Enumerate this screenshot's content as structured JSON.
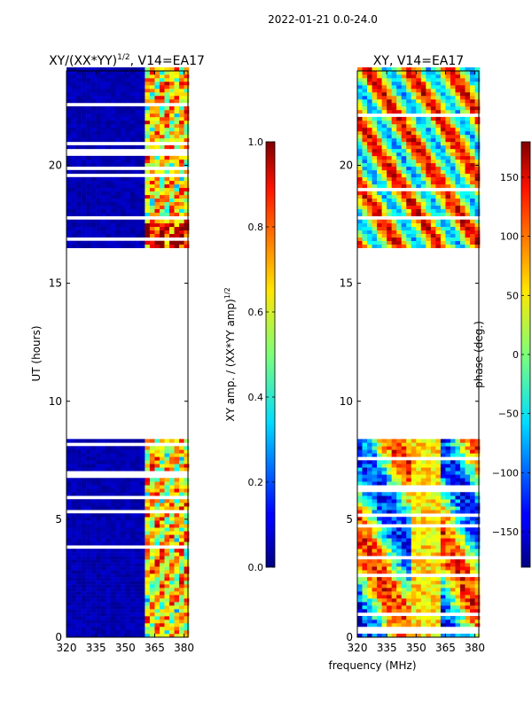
{
  "page": {
    "suptitle": "2022-01-21 0.0-24.0",
    "shared_xlabel": "frequency (MHz)"
  },
  "chart_data": [
    {
      "type": "heatmap",
      "title_main": "XY/(XX*YY)",
      "title_sup": "1/2",
      "title_rest": ", V14=EA17",
      "xlabel": "frequency (MHz)",
      "ylabel": "UT (hours)",
      "xlim": [
        320,
        382
      ],
      "ylim": [
        0,
        24
      ],
      "xticks": [
        320,
        335,
        350,
        365,
        380
      ],
      "yticks": [
        0,
        5,
        10,
        15,
        20
      ],
      "data_gaps_hours": [
        [
          8.4,
          16.5
        ]
      ],
      "bright_band_mhz": [
        360,
        382
      ],
      "colorbar": {
        "label_main": "XY amp. / (XX*YY amp)",
        "label_sup": "1/2",
        "range": [
          0.0,
          1.0
        ],
        "ticks": [
          "0.0",
          "0.2",
          "0.4",
          "0.6",
          "0.8",
          "1.0"
        ],
        "tick_values": [
          0.0,
          0.2,
          0.4,
          0.6,
          0.8,
          1.0
        ],
        "colormap": "jet"
      }
    },
    {
      "type": "heatmap",
      "title": "XY, V14=EA17",
      "xlabel": "frequency (MHz)",
      "ylabel": "",
      "xlim": [
        320,
        382
      ],
      "ylim": [
        0,
        24
      ],
      "xticks": [
        320,
        335,
        350,
        365,
        380
      ],
      "yticks": [
        0,
        5,
        10,
        15,
        20
      ],
      "data_gaps_hours": [
        [
          8.4,
          16.5
        ]
      ],
      "colorbar": {
        "label": "phase (deg.)",
        "range": [
          -180,
          180
        ],
        "ticks": [
          "−150",
          "−100",
          "−50",
          "0",
          "50",
          "100",
          "150"
        ],
        "tick_values": [
          -150,
          -100,
          -50,
          0,
          50,
          100,
          150
        ],
        "colormap": "jet"
      }
    }
  ],
  "colors": {
    "jet_low": "#00007f",
    "jet_mid": "#7fff7f",
    "jet_high": "#7f0000"
  }
}
